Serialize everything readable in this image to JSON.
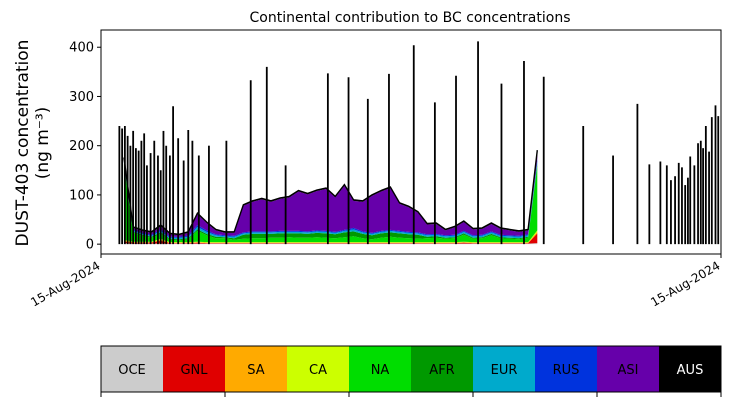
{
  "chart_data": {
    "type": "area",
    "title": "Continental contribution to BC concentrations",
    "ylabel_line1": "DUST-403 concentration",
    "ylabel_line2": "(ng m⁻³)",
    "xlabel": "",
    "ylim": [
      -20,
      435
    ],
    "yticks": [
      0,
      100,
      200,
      300,
      400
    ],
    "xtick_labels": [
      "15-Aug-2024",
      "15-Aug-2024"
    ],
    "grid": false,
    "stack_order": [
      "OCE",
      "GNL",
      "SA",
      "CA",
      "NA",
      "AFR",
      "EUR",
      "RUS",
      "ASI",
      "AUS"
    ],
    "x": [
      0.05,
      0.07,
      0.09,
      0.11,
      0.13,
      0.15,
      0.17,
      0.19,
      0.21,
      0.23,
      0.25,
      0.27,
      0.29,
      0.31,
      0.33,
      0.35,
      0.37,
      0.39,
      0.41,
      0.43,
      0.45,
      0.47,
      0.49,
      0.51,
      0.53,
      0.55,
      0.57,
      0.59,
      0.61,
      0.63,
      0.65,
      0.67,
      0.69,
      0.71,
      0.73,
      0.75,
      0.77,
      0.79,
      0.81,
      0.83,
      0.85,
      0.87,
      0.89,
      0.91,
      0.93,
      0.95
    ],
    "series": [
      {
        "name": "OCE",
        "color": "#cccccc",
        "values": [
          2,
          1,
          1,
          1,
          1,
          1,
          1,
          1,
          1,
          1,
          1,
          1,
          1,
          1,
          1,
          1,
          1,
          1,
          1,
          1,
          1,
          1,
          1,
          1,
          1,
          1,
          1,
          1,
          1,
          1,
          1,
          1,
          1,
          1,
          1,
          1,
          1,
          1,
          1,
          1,
          1,
          1,
          1,
          1,
          1,
          2
        ]
      },
      {
        "name": "GNL",
        "color": "#e00000",
        "values": [
          3,
          2,
          2,
          2,
          6,
          1,
          1,
          1,
          2,
          1,
          1,
          1,
          1,
          1,
          1,
          1,
          1,
          1,
          1,
          1,
          1,
          1,
          1,
          1,
          1,
          1,
          1,
          1,
          1,
          1,
          1,
          1,
          1,
          1,
          1,
          1,
          1,
          2,
          1,
          1,
          1,
          1,
          1,
          1,
          1,
          20
        ]
      },
      {
        "name": "SA",
        "color": "#ffaa00",
        "values": [
          2,
          1,
          1,
          1,
          2,
          1,
          1,
          1,
          1,
          1,
          1,
          1,
          1,
          1,
          1,
          1,
          1,
          1,
          1,
          1,
          1,
          1,
          1,
          1,
          1,
          1,
          1,
          1,
          1,
          1,
          1,
          1,
          1,
          1,
          1,
          1,
          1,
          1,
          1,
          1,
          1,
          1,
          1,
          1,
          1,
          3
        ]
      },
      {
        "name": "CA",
        "color": "#ccff00",
        "values": [
          2,
          1,
          1,
          1,
          2,
          1,
          1,
          1,
          1,
          1,
          1,
          1,
          1,
          1,
          1,
          1,
          1,
          1,
          1,
          1,
          1,
          1,
          1,
          1,
          1,
          1,
          1,
          1,
          1,
          1,
          1,
          1,
          1,
          1,
          1,
          1,
          1,
          1,
          1,
          1,
          1,
          1,
          1,
          1,
          1,
          3
        ]
      },
      {
        "name": "NA",
        "color": "#00dd00",
        "values": [
          150,
          18,
          12,
          8,
          10,
          5,
          4,
          6,
          22,
          14,
          8,
          8,
          5,
          7,
          8,
          8,
          9,
          9,
          10,
          9,
          9,
          10,
          9,
          8,
          10,
          12,
          8,
          6,
          9,
          11,
          9,
          8,
          7,
          8,
          9,
          7,
          8,
          14,
          7,
          8,
          14,
          8,
          7,
          6,
          9,
          130
        ]
      },
      {
        "name": "AFR",
        "color": "#009900",
        "values": [
          4,
          2,
          2,
          2,
          3,
          2,
          2,
          2,
          3,
          3,
          3,
          2,
          3,
          8,
          9,
          9,
          8,
          9,
          8,
          9,
          8,
          9,
          9,
          8,
          10,
          10,
          9,
          8,
          9,
          9,
          9,
          8,
          8,
          3,
          3,
          2,
          2,
          3,
          2,
          2,
          3,
          2,
          2,
          2,
          2,
          4
        ]
      },
      {
        "name": "EUR",
        "color": "#00aacc",
        "values": [
          3,
          2,
          2,
          2,
          3,
          2,
          3,
          3,
          5,
          4,
          3,
          2,
          3,
          3,
          3,
          3,
          3,
          3,
          3,
          3,
          3,
          3,
          3,
          3,
          3,
          4,
          3,
          3,
          3,
          3,
          3,
          3,
          3,
          3,
          3,
          3,
          3,
          3,
          3,
          3,
          3,
          3,
          3,
          3,
          3,
          6
        ]
      },
      {
        "name": "RUS",
        "color": "#0033dd",
        "values": [
          3,
          2,
          2,
          2,
          3,
          2,
          2,
          2,
          4,
          3,
          2,
          2,
          2,
          2,
          2,
          2,
          2,
          2,
          2,
          2,
          2,
          2,
          2,
          2,
          2,
          3,
          2,
          2,
          2,
          2,
          2,
          2,
          2,
          2,
          2,
          2,
          2,
          2,
          2,
          2,
          2,
          2,
          2,
          2,
          2,
          5
        ]
      },
      {
        "name": "ASI",
        "color": "#6600aa",
        "values": [
          4,
          4,
          4,
          4,
          6,
          5,
          3,
          6,
          22,
          15,
          8,
          5,
          6,
          54,
          60,
          65,
          60,
          65,
          68,
          80,
          75,
          80,
          85,
          70,
          90,
          55,
          60,
          75,
          80,
          85,
          55,
          50,
          40,
          20,
          20,
          10,
          15,
          18,
          12,
          12,
          15,
          12,
          10,
          8,
          8,
          10
        ]
      },
      {
        "name": "AUS",
        "color": "#000000",
        "values": [
          3,
          2,
          2,
          2,
          3,
          2,
          2,
          2,
          2,
          2,
          2,
          2,
          2,
          2,
          2,
          2,
          2,
          2,
          2,
          2,
          2,
          2,
          2,
          2,
          2,
          2,
          2,
          2,
          2,
          2,
          2,
          2,
          2,
          2,
          2,
          2,
          2,
          2,
          2,
          2,
          2,
          2,
          2,
          2,
          2,
          8
        ]
      }
    ],
    "spikes": [
      {
        "x": 0.04,
        "y": 240
      },
      {
        "x": 0.046,
        "y": 235
      },
      {
        "x": 0.052,
        "y": 240
      },
      {
        "x": 0.058,
        "y": 220
      },
      {
        "x": 0.064,
        "y": 200
      },
      {
        "x": 0.07,
        "y": 230
      },
      {
        "x": 0.076,
        "y": 195
      },
      {
        "x": 0.082,
        "y": 190
      },
      {
        "x": 0.088,
        "y": 210
      },
      {
        "x": 0.094,
        "y": 225
      },
      {
        "x": 0.1,
        "y": 160
      },
      {
        "x": 0.108,
        "y": 185
      },
      {
        "x": 0.116,
        "y": 210
      },
      {
        "x": 0.124,
        "y": 180
      },
      {
        "x": 0.13,
        "y": 150
      },
      {
        "x": 0.136,
        "y": 230
      },
      {
        "x": 0.142,
        "y": 200
      },
      {
        "x": 0.15,
        "y": 180
      },
      {
        "x": 0.157,
        "y": 280
      },
      {
        "x": 0.168,
        "y": 215
      },
      {
        "x": 0.18,
        "y": 170
      },
      {
        "x": 0.19,
        "y": 232
      },
      {
        "x": 0.199,
        "y": 210
      },
      {
        "x": 0.213,
        "y": 180
      },
      {
        "x": 0.235,
        "y": 200
      },
      {
        "x": 0.273,
        "y": 210
      },
      {
        "x": 0.326,
        "y": 333
      },
      {
        "x": 0.361,
        "y": 360
      },
      {
        "x": 0.402,
        "y": 160
      },
      {
        "x": 0.494,
        "y": 347
      },
      {
        "x": 0.539,
        "y": 339
      },
      {
        "x": 0.581,
        "y": 295
      },
      {
        "x": 0.627,
        "y": 346
      },
      {
        "x": 0.681,
        "y": 404
      },
      {
        "x": 0.727,
        "y": 288
      },
      {
        "x": 0.773,
        "y": 342
      },
      {
        "x": 0.821,
        "y": 412
      },
      {
        "x": 0.872,
        "y": 326
      },
      {
        "x": 0.921,
        "y": 372
      },
      {
        "x": 0.964,
        "y": 340
      },
      {
        "x": 1.05,
        "y": 240
      },
      {
        "x": 1.115,
        "y": 180
      },
      {
        "x": 1.168,
        "y": 285
      },
      {
        "x": 1.194,
        "y": 162
      },
      {
        "x": 1.218,
        "y": 168
      },
      {
        "x": 1.232,
        "y": 160
      },
      {
        "x": 1.241,
        "y": 130
      },
      {
        "x": 1.25,
        "y": 138
      },
      {
        "x": 1.258,
        "y": 165
      },
      {
        "x": 1.265,
        "y": 156
      },
      {
        "x": 1.272,
        "y": 120
      },
      {
        "x": 1.278,
        "y": 135
      },
      {
        "x": 1.283,
        "y": 178
      },
      {
        "x": 1.292,
        "y": 160
      },
      {
        "x": 1.3,
        "y": 205
      },
      {
        "x": 1.306,
        "y": 210
      },
      {
        "x": 1.311,
        "y": 195
      },
      {
        "x": 1.317,
        "y": 240
      },
      {
        "x": 1.324,
        "y": 188
      },
      {
        "x": 1.33,
        "y": 258
      },
      {
        "x": 1.338,
        "y": 282
      },
      {
        "x": 1.344,
        "y": 260
      }
    ],
    "legend": {
      "placement": "bottom",
      "labels": [
        "OCE",
        "GNL",
        "SA",
        "CA",
        "NA",
        "AFR",
        "EUR",
        "RUS",
        "ASI",
        "AUS"
      ],
      "label_colors": [
        "#000000",
        "#000000",
        "#000000",
        "#000000",
        "#000000",
        "#000000",
        "#000000",
        "#000000",
        "#000000",
        "#ffffff"
      ]
    }
  }
}
